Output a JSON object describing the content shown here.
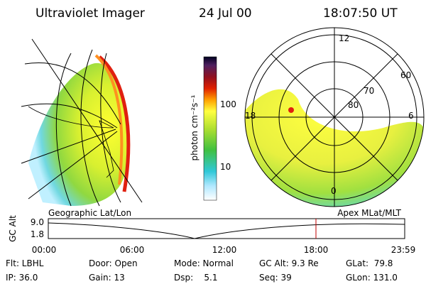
{
  "header": {
    "instrument": "Ultraviolet Imager",
    "date": "24 Jul 00",
    "time": "18:07:50 UT"
  },
  "colorbar": {
    "label": "photon cm⁻²s⁻¹",
    "ticks": [
      "100",
      "10"
    ]
  },
  "polar_plot": {
    "mlt_labels": [
      "12",
      "18",
      "6",
      "0"
    ],
    "mlat_labels": [
      "60",
      "70",
      "80"
    ]
  },
  "altitude_plot": {
    "left_title": "Geographic Lat/Lon",
    "right_title": "Apex MLat/MLT",
    "axis_label": "GC Alt",
    "y_labels": [
      "9.0",
      "1.8"
    ],
    "time_labels": [
      "00:00",
      "06:00",
      "12:00",
      "18:00",
      "23:59"
    ]
  },
  "info": {
    "rows": [
      [
        "Flt: LBHL",
        "Door: Open",
        "Mode: Normal",
        "GC Alt: 9.3 Re",
        "GLat:  79.8"
      ],
      [
        "IP: 36.0",
        "Gain: 13",
        "Dsp:    5.1",
        "Seq: 39",
        "GLon: 131.0"
      ]
    ]
  }
}
